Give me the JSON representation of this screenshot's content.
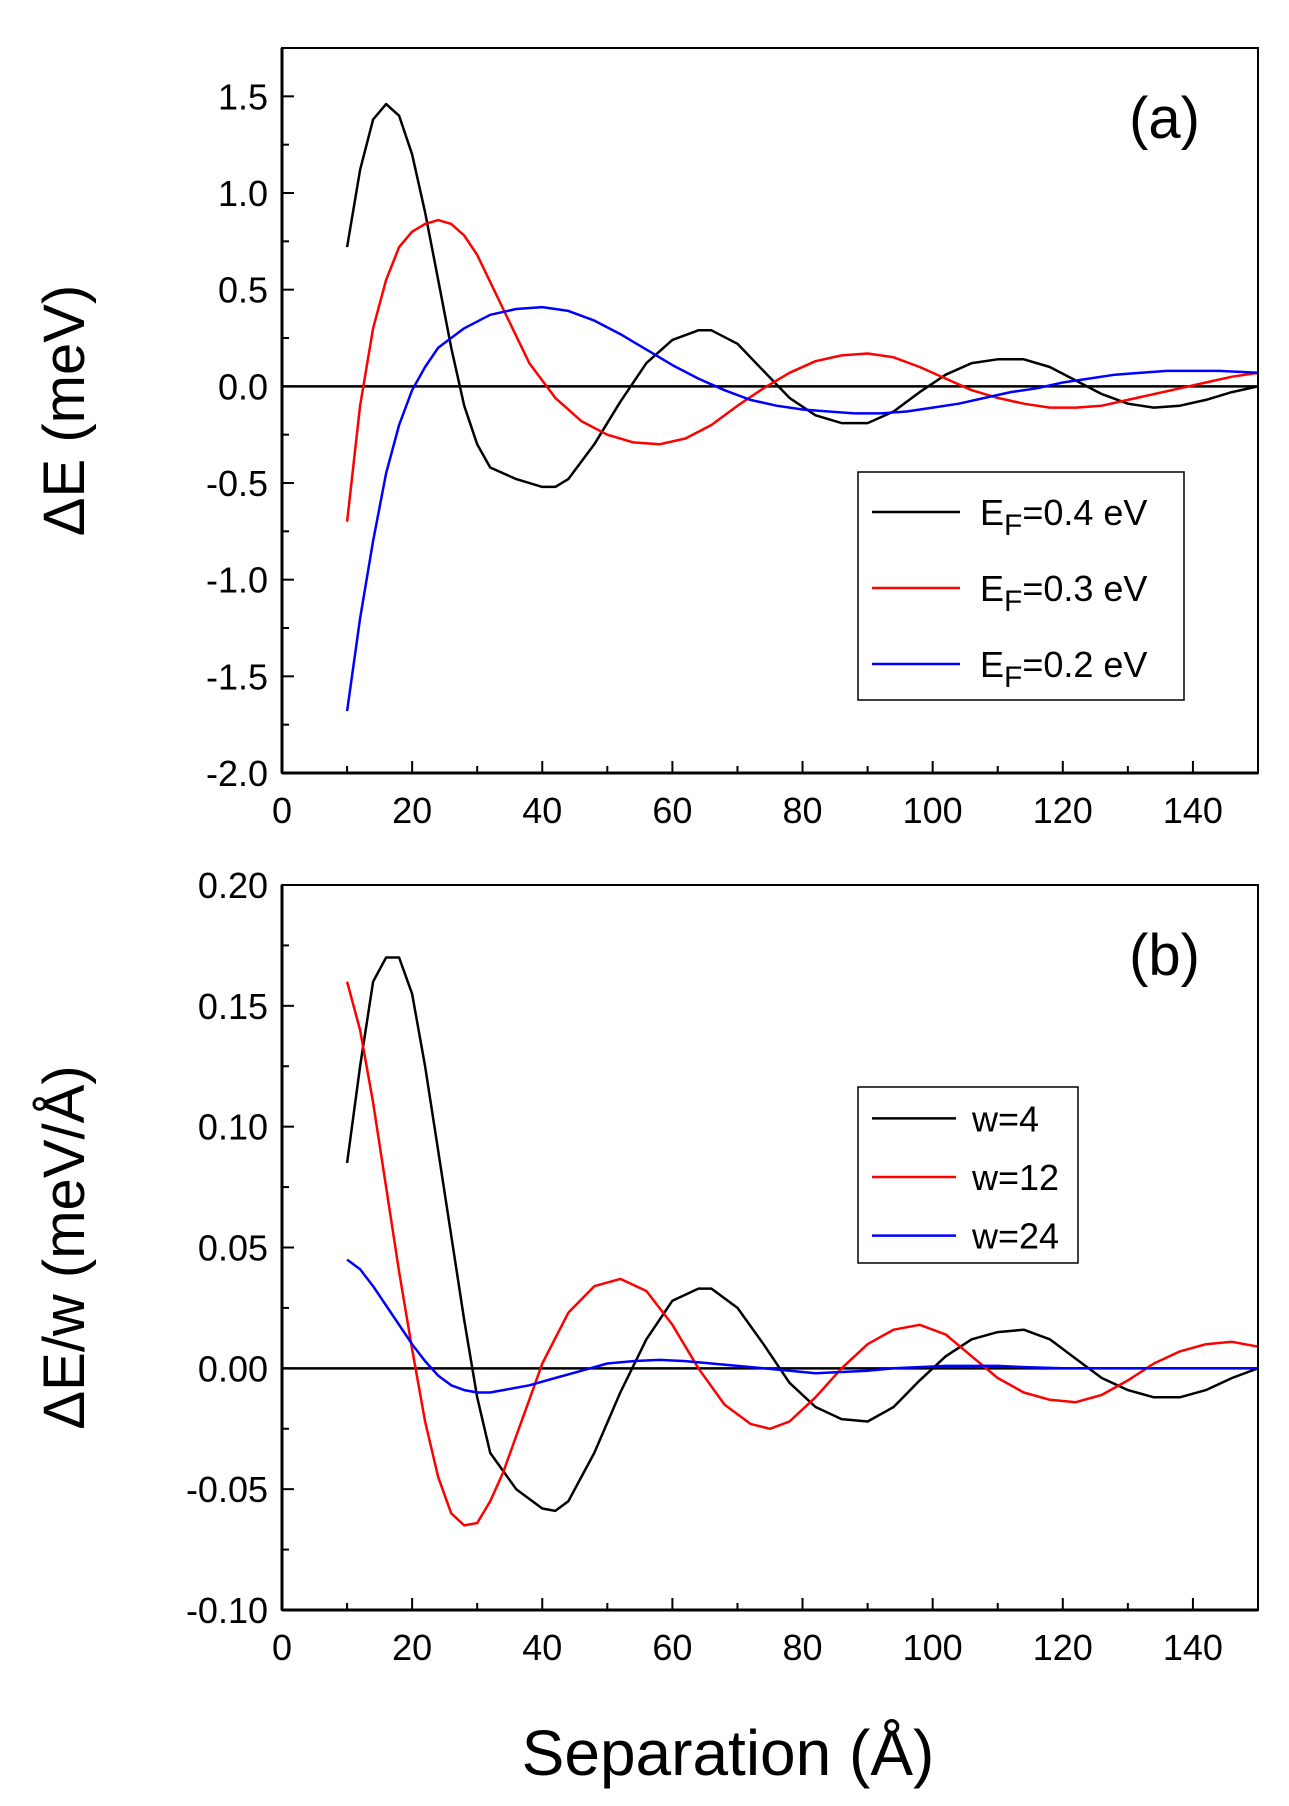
{
  "chart_data": [
    {
      "panel": "(a)",
      "type": "line",
      "ylabel": "ΔE (meV)",
      "xlabel": "",
      "xlim": [
        0,
        150
      ],
      "ylim": [
        -2.0,
        1.75
      ],
      "x_ticks": [
        0,
        20,
        40,
        60,
        80,
        100,
        120,
        140
      ],
      "x_tick_labels": [
        "0",
        "20",
        "40",
        "60",
        "80",
        "100",
        "120",
        "140"
      ],
      "y_ticks": [
        -2.0,
        -1.5,
        -1.0,
        -0.5,
        0.0,
        0.5,
        1.0,
        1.5
      ],
      "y_tick_labels": [
        "-2.0",
        "-1.5",
        "-1.0",
        "-0.5",
        "0.0",
        "0.5",
        "1.0",
        "1.5"
      ],
      "zero_line": true,
      "legend_position": "middle-right",
      "series": [
        {
          "name": "E_F=0.4 eV",
          "legend_main": "E",
          "legend_sub": "F",
          "legend_rest": "=0.4 eV",
          "color": "#000000",
          "points": [
            [
              10,
              0.72
            ],
            [
              12,
              1.12
            ],
            [
              14,
              1.38
            ],
            [
              16,
              1.46
            ],
            [
              18,
              1.4
            ],
            [
              20,
              1.2
            ],
            [
              22,
              0.9
            ],
            [
              24,
              0.55
            ],
            [
              26,
              0.2
            ],
            [
              28,
              -0.1
            ],
            [
              30,
              -0.3
            ],
            [
              32,
              -0.42
            ],
            [
              36,
              -0.48
            ],
            [
              40,
              -0.52
            ],
            [
              42,
              -0.52
            ],
            [
              44,
              -0.48
            ],
            [
              48,
              -0.3
            ],
            [
              52,
              -0.08
            ],
            [
              56,
              0.12
            ],
            [
              60,
              0.24
            ],
            [
              64,
              0.29
            ],
            [
              66,
              0.29
            ],
            [
              70,
              0.22
            ],
            [
              74,
              0.08
            ],
            [
              78,
              -0.06
            ],
            [
              82,
              -0.15
            ],
            [
              86,
              -0.19
            ],
            [
              90,
              -0.19
            ],
            [
              94,
              -0.13
            ],
            [
              98,
              -0.03
            ],
            [
              102,
              0.06
            ],
            [
              106,
              0.12
            ],
            [
              110,
              0.14
            ],
            [
              114,
              0.14
            ],
            [
              118,
              0.1
            ],
            [
              122,
              0.03
            ],
            [
              126,
              -0.04
            ],
            [
              130,
              -0.09
            ],
            [
              134,
              -0.11
            ],
            [
              138,
              -0.1
            ],
            [
              142,
              -0.07
            ],
            [
              146,
              -0.03
            ],
            [
              150,
              0.0
            ]
          ]
        },
        {
          "name": "E_F=0.3 eV",
          "legend_main": "E",
          "legend_sub": "F",
          "legend_rest": "=0.3 eV",
          "color": "#ff0000",
          "points": [
            [
              10,
              -0.7
            ],
            [
              12,
              -0.1
            ],
            [
              14,
              0.3
            ],
            [
              16,
              0.55
            ],
            [
              18,
              0.72
            ],
            [
              20,
              0.8
            ],
            [
              22,
              0.84
            ],
            [
              24,
              0.86
            ],
            [
              26,
              0.84
            ],
            [
              28,
              0.78
            ],
            [
              30,
              0.68
            ],
            [
              34,
              0.4
            ],
            [
              38,
              0.12
            ],
            [
              42,
              -0.06
            ],
            [
              46,
              -0.18
            ],
            [
              50,
              -0.25
            ],
            [
              54,
              -0.29
            ],
            [
              58,
              -0.3
            ],
            [
              62,
              -0.27
            ],
            [
              66,
              -0.2
            ],
            [
              70,
              -0.1
            ],
            [
              74,
              -0.01
            ],
            [
              78,
              0.07
            ],
            [
              82,
              0.13
            ],
            [
              86,
              0.16
            ],
            [
              90,
              0.17
            ],
            [
              94,
              0.15
            ],
            [
              98,
              0.1
            ],
            [
              102,
              0.04
            ],
            [
              106,
              -0.02
            ],
            [
              110,
              -0.06
            ],
            [
              114,
              -0.09
            ],
            [
              118,
              -0.11
            ],
            [
              122,
              -0.11
            ],
            [
              126,
              -0.1
            ],
            [
              130,
              -0.07
            ],
            [
              134,
              -0.04
            ],
            [
              138,
              -0.01
            ],
            [
              142,
              0.02
            ],
            [
              146,
              0.05
            ],
            [
              150,
              0.07
            ]
          ]
        },
        {
          "name": "E_F=0.2 eV",
          "legend_main": "E",
          "legend_sub": "F",
          "legend_rest": "=0.2 eV",
          "color": "#0000ff",
          "points": [
            [
              10,
              -1.68
            ],
            [
              12,
              -1.2
            ],
            [
              14,
              -0.8
            ],
            [
              16,
              -0.45
            ],
            [
              18,
              -0.2
            ],
            [
              20,
              -0.02
            ],
            [
              22,
              0.1
            ],
            [
              24,
              0.2
            ],
            [
              28,
              0.3
            ],
            [
              32,
              0.37
            ],
            [
              36,
              0.4
            ],
            [
              40,
              0.41
            ],
            [
              44,
              0.39
            ],
            [
              48,
              0.34
            ],
            [
              52,
              0.27
            ],
            [
              56,
              0.19
            ],
            [
              60,
              0.11
            ],
            [
              64,
              0.04
            ],
            [
              68,
              -0.02
            ],
            [
              72,
              -0.07
            ],
            [
              76,
              -0.1
            ],
            [
              80,
              -0.12
            ],
            [
              84,
              -0.13
            ],
            [
              88,
              -0.14
            ],
            [
              92,
              -0.14
            ],
            [
              96,
              -0.13
            ],
            [
              100,
              -0.11
            ],
            [
              104,
              -0.09
            ],
            [
              108,
              -0.06
            ],
            [
              112,
              -0.03
            ],
            [
              116,
              -0.01
            ],
            [
              120,
              0.02
            ],
            [
              124,
              0.04
            ],
            [
              128,
              0.06
            ],
            [
              132,
              0.07
            ],
            [
              136,
              0.08
            ],
            [
              140,
              0.08
            ],
            [
              144,
              0.08
            ],
            [
              150,
              0.07
            ]
          ]
        }
      ]
    },
    {
      "panel": "(b)",
      "type": "line",
      "ylabel": "ΔE/w (meV/Å)",
      "xlabel": "Separation (Å)",
      "xlim": [
        0,
        150
      ],
      "ylim": [
        -0.1,
        0.2
      ],
      "x_ticks": [
        0,
        20,
        40,
        60,
        80,
        100,
        120,
        140
      ],
      "x_tick_labels": [
        "0",
        "20",
        "40",
        "60",
        "80",
        "100",
        "120",
        "140"
      ],
      "y_ticks": [
        -0.1,
        -0.05,
        0.0,
        0.05,
        0.1,
        0.15,
        0.2
      ],
      "y_tick_labels": [
        "-0.10",
        "-0.05",
        "0.00",
        "0.05",
        "0.10",
        "0.15",
        "0.20"
      ],
      "zero_line": true,
      "legend_position": "middle-right",
      "series": [
        {
          "name": "w=4",
          "legend_main": "w=4",
          "legend_sub": "",
          "legend_rest": "",
          "color": "#000000",
          "points": [
            [
              10,
              0.085
            ],
            [
              12,
              0.125
            ],
            [
              14,
              0.16
            ],
            [
              16,
              0.17
            ],
            [
              18,
              0.17
            ],
            [
              20,
              0.155
            ],
            [
              22,
              0.125
            ],
            [
              24,
              0.09
            ],
            [
              26,
              0.055
            ],
            [
              28,
              0.02
            ],
            [
              30,
              -0.012
            ],
            [
              32,
              -0.035
            ],
            [
              36,
              -0.05
            ],
            [
              40,
              -0.058
            ],
            [
              42,
              -0.059
            ],
            [
              44,
              -0.055
            ],
            [
              48,
              -0.035
            ],
            [
              52,
              -0.01
            ],
            [
              56,
              0.012
            ],
            [
              60,
              0.028
            ],
            [
              64,
              0.033
            ],
            [
              66,
              0.033
            ],
            [
              70,
              0.025
            ],
            [
              74,
              0.01
            ],
            [
              78,
              -0.006
            ],
            [
              82,
              -0.016
            ],
            [
              86,
              -0.021
            ],
            [
              90,
              -0.022
            ],
            [
              94,
              -0.016
            ],
            [
              98,
              -0.005
            ],
            [
              102,
              0.005
            ],
            [
              106,
              0.012
            ],
            [
              110,
              0.015
            ],
            [
              114,
              0.016
            ],
            [
              118,
              0.012
            ],
            [
              122,
              0.004
            ],
            [
              126,
              -0.004
            ],
            [
              130,
              -0.009
            ],
            [
              134,
              -0.012
            ],
            [
              138,
              -0.012
            ],
            [
              142,
              -0.009
            ],
            [
              146,
              -0.004
            ],
            [
              150,
              0.0
            ]
          ]
        },
        {
          "name": "w=12",
          "legend_main": "w=12",
          "legend_sub": "",
          "legend_rest": "",
          "color": "#ff0000",
          "points": [
            [
              10,
              0.16
            ],
            [
              12,
              0.14
            ],
            [
              14,
              0.11
            ],
            [
              16,
              0.075
            ],
            [
              18,
              0.04
            ],
            [
              20,
              0.008
            ],
            [
              22,
              -0.022
            ],
            [
              24,
              -0.045
            ],
            [
              26,
              -0.06
            ],
            [
              28,
              -0.065
            ],
            [
              30,
              -0.064
            ],
            [
              32,
              -0.055
            ],
            [
              34,
              -0.043
            ],
            [
              36,
              -0.028
            ],
            [
              38,
              -0.013
            ],
            [
              40,
              0.002
            ],
            [
              44,
              0.023
            ],
            [
              48,
              0.034
            ],
            [
              52,
              0.037
            ],
            [
              56,
              0.032
            ],
            [
              60,
              0.018
            ],
            [
              64,
              0.0
            ],
            [
              68,
              -0.015
            ],
            [
              72,
              -0.023
            ],
            [
              75,
              -0.025
            ],
            [
              78,
              -0.022
            ],
            [
              82,
              -0.012
            ],
            [
              86,
              0.0
            ],
            [
              90,
              0.01
            ],
            [
              94,
              0.016
            ],
            [
              98,
              0.018
            ],
            [
              102,
              0.014
            ],
            [
              106,
              0.005
            ],
            [
              110,
              -0.004
            ],
            [
              114,
              -0.01
            ],
            [
              118,
              -0.013
            ],
            [
              122,
              -0.014
            ],
            [
              126,
              -0.011
            ],
            [
              130,
              -0.005
            ],
            [
              134,
              0.002
            ],
            [
              138,
              0.007
            ],
            [
              142,
              0.01
            ],
            [
              146,
              0.011
            ],
            [
              150,
              0.009
            ]
          ]
        },
        {
          "name": "w=24",
          "legend_main": "w=24",
          "legend_sub": "",
          "legend_rest": "",
          "color": "#0000ff",
          "points": [
            [
              10,
              0.045
            ],
            [
              12,
              0.041
            ],
            [
              14,
              0.034
            ],
            [
              16,
              0.026
            ],
            [
              18,
              0.018
            ],
            [
              20,
              0.01
            ],
            [
              22,
              0.003
            ],
            [
              24,
              -0.003
            ],
            [
              26,
              -0.007
            ],
            [
              28,
              -0.009
            ],
            [
              30,
              -0.01
            ],
            [
              32,
              -0.01
            ],
            [
              34,
              -0.009
            ],
            [
              38,
              -0.007
            ],
            [
              42,
              -0.004
            ],
            [
              46,
              -0.001
            ],
            [
              50,
              0.002
            ],
            [
              54,
              0.003
            ],
            [
              58,
              0.0035
            ],
            [
              62,
              0.003
            ],
            [
              66,
              0.002
            ],
            [
              70,
              0.001
            ],
            [
              74,
              0.0
            ],
            [
              78,
              -0.001
            ],
            [
              82,
              -0.002
            ],
            [
              86,
              -0.0015
            ],
            [
              90,
              -0.001
            ],
            [
              94,
              0.0
            ],
            [
              98,
              0.0005
            ],
            [
              102,
              0.001
            ],
            [
              106,
              0.001
            ],
            [
              110,
              0.001
            ],
            [
              114,
              0.0005
            ],
            [
              120,
              0.0
            ],
            [
              130,
              0.0
            ],
            [
              140,
              0.0
            ],
            [
              150,
              0.0
            ]
          ]
        }
      ]
    }
  ]
}
